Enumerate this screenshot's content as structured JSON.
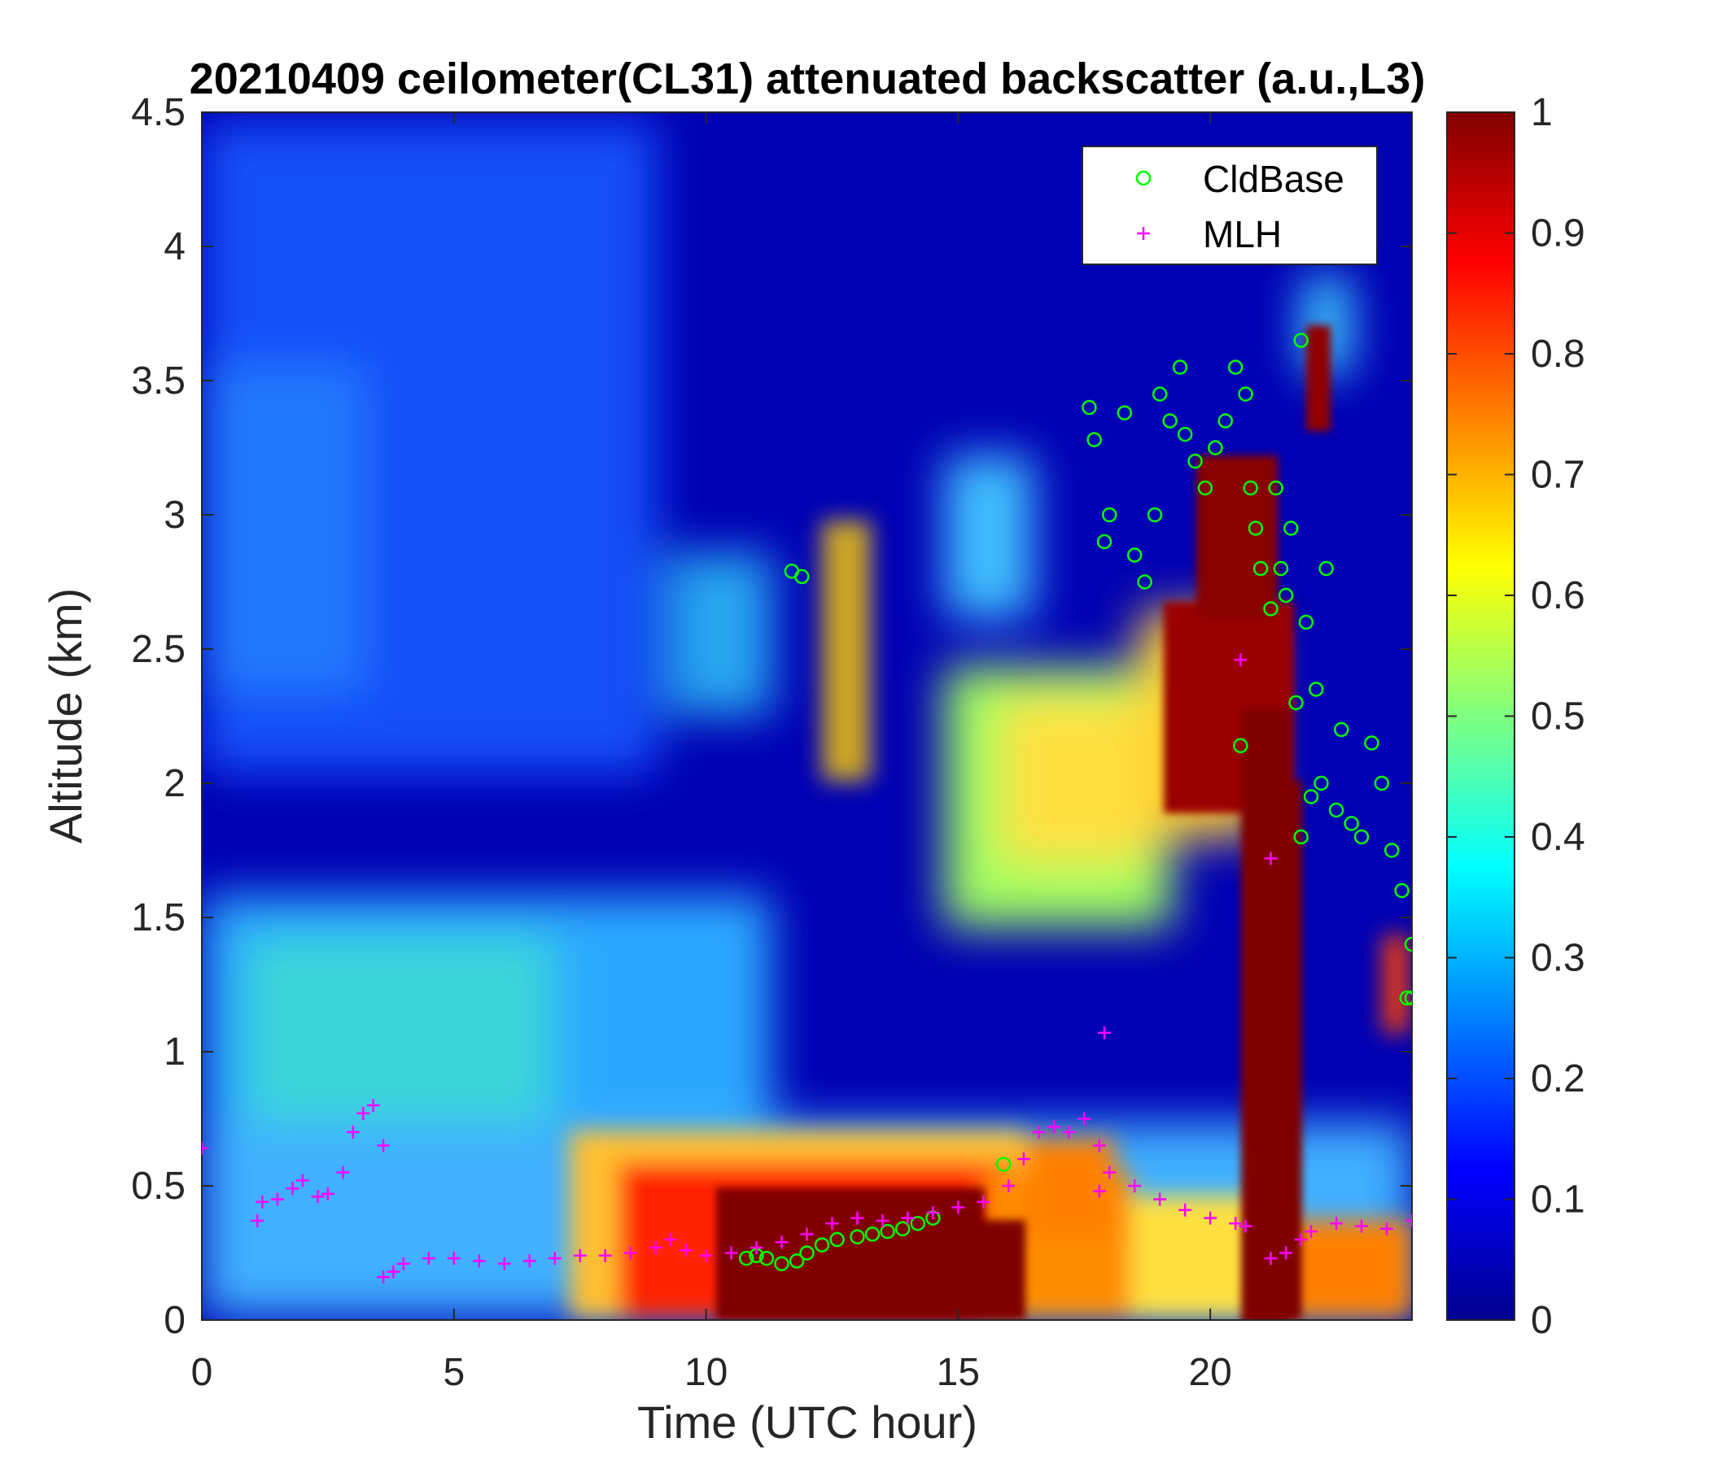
{
  "chart_data": {
    "type": "heatmap",
    "title": "20210409 ceilometer(CL31) attenuated backscatter (a.u.,L3)",
    "xlabel": "Time (UTC hour)",
    "ylabel": "Altitude (km)",
    "xlim": [
      0,
      24
    ],
    "ylim": [
      0,
      4.5
    ],
    "xticks": [
      "0",
      "5",
      "10",
      "15",
      "20"
    ],
    "yticks": [
      "0",
      "0.5",
      "1",
      "1.5",
      "2",
      "2.5",
      "3",
      "3.5",
      "4",
      "4.5"
    ],
    "colorbar": {
      "range": [
        0,
        1
      ],
      "ticks": [
        "0",
        "0.1",
        "0.2",
        "0.3",
        "0.4",
        "0.5",
        "0.6",
        "0.7",
        "0.8",
        "0.9",
        "1"
      ],
      "colormap": "jet"
    },
    "legend": {
      "placement": "top-right",
      "entries": [
        {
          "label": "CldBase",
          "marker": "circle",
          "color": "#00ff00"
        },
        {
          "label": "MLH",
          "marker": "plus",
          "color": "#ff00ff"
        }
      ]
    },
    "series": [
      {
        "name": "CldBase",
        "x": [
          10.8,
          11.0,
          11.2,
          11.5,
          11.8,
          12.0,
          12.3,
          12.6,
          13.0,
          13.3,
          13.6,
          13.9,
          14.2,
          14.5,
          15.9,
          11.7,
          11.9,
          17.6,
          17.7,
          17.9,
          18.0,
          18.3,
          18.5,
          18.7,
          18.9,
          19.0,
          19.2,
          19.4,
          19.5,
          19.7,
          19.9,
          20.1,
          20.3,
          20.5,
          20.7,
          20.8,
          20.9,
          21.0,
          21.2,
          21.3,
          21.4,
          21.5,
          21.6,
          21.7,
          21.8,
          21.9,
          22.0,
          22.1,
          22.2,
          22.3,
          22.5,
          22.6,
          22.8,
          23.0,
          23.2,
          23.4,
          23.6,
          23.8,
          24.0,
          24.0,
          23.9,
          20.6,
          21.8
        ],
        "y": [
          0.23,
          0.24,
          0.23,
          0.21,
          0.22,
          0.25,
          0.28,
          0.3,
          0.31,
          0.32,
          0.33,
          0.34,
          0.36,
          0.38,
          0.58,
          2.79,
          2.77,
          3.4,
          3.28,
          2.9,
          3.0,
          3.38,
          2.85,
          2.75,
          3.0,
          3.45,
          3.35,
          3.55,
          3.3,
          3.2,
          3.1,
          3.25,
          3.35,
          3.55,
          3.45,
          3.1,
          2.95,
          2.8,
          2.65,
          3.1,
          2.8,
          2.7,
          2.95,
          2.3,
          1.8,
          2.6,
          1.95,
          2.35,
          2.0,
          2.8,
          1.9,
          2.2,
          1.85,
          1.8,
          2.15,
          2.0,
          1.75,
          1.6,
          1.4,
          1.2,
          1.2,
          2.14,
          3.65
        ]
      },
      {
        "name": "MLH",
        "x": [
          0.0,
          1.1,
          1.2,
          1.5,
          1.8,
          2.0,
          2.3,
          2.5,
          2.8,
          3.0,
          3.2,
          3.4,
          3.6,
          3.6,
          3.8,
          4.0,
          4.5,
          5.0,
          5.5,
          6.0,
          6.5,
          7.0,
          7.5,
          8.0,
          8.5,
          9.0,
          9.3,
          9.6,
          10.0,
          10.5,
          11.0,
          11.5,
          12.0,
          12.5,
          13.0,
          13.5,
          14.0,
          14.5,
          15.0,
          15.5,
          16.0,
          16.3,
          16.6,
          16.9,
          17.2,
          17.5,
          17.8,
          18.0,
          18.5,
          19.0,
          19.5,
          20.0,
          20.5,
          20.7,
          21.2,
          21.5,
          21.8,
          22.0,
          22.5,
          23.0,
          23.5,
          24.0,
          17.9,
          17.8,
          21.2,
          20.6
        ],
        "y": [
          0.64,
          0.37,
          0.44,
          0.45,
          0.49,
          0.52,
          0.46,
          0.47,
          0.55,
          0.7,
          0.77,
          0.8,
          0.65,
          0.16,
          0.18,
          0.21,
          0.23,
          0.23,
          0.22,
          0.21,
          0.22,
          0.23,
          0.24,
          0.24,
          0.25,
          0.27,
          0.3,
          0.26,
          0.24,
          0.25,
          0.27,
          0.29,
          0.32,
          0.36,
          0.38,
          0.37,
          0.38,
          0.4,
          0.42,
          0.44,
          0.5,
          0.6,
          0.7,
          0.72,
          0.7,
          0.75,
          0.65,
          0.55,
          0.5,
          0.45,
          0.41,
          0.38,
          0.36,
          0.35,
          0.23,
          0.25,
          0.3,
          0.33,
          0.36,
          0.35,
          0.34,
          0.37,
          1.07,
          0.48,
          1.72,
          2.46
        ]
      }
    ]
  }
}
